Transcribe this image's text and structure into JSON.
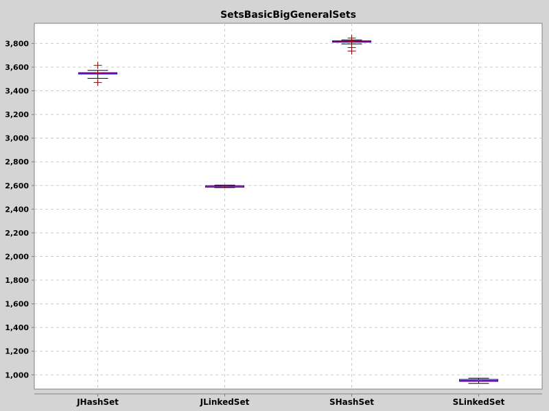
{
  "chart_data": {
    "type": "box",
    "title": "SetsBasicBigGeneralSets",
    "xlabel": "",
    "ylabel": "",
    "categories": [
      "JHashSet",
      "JLinkedSet",
      "SHashSet",
      "SLinkedSet"
    ],
    "ylim": [
      880,
      3970
    ],
    "y_ticks": [
      1000,
      1200,
      1400,
      1600,
      1800,
      2000,
      2200,
      2400,
      2600,
      2800,
      3000,
      3200,
      3400,
      3600,
      3800
    ],
    "y_tick_labels": [
      "1,000",
      "1,200",
      "1,400",
      "1,600",
      "1,800",
      "2,000",
      "2,200",
      "2,400",
      "2,600",
      "2,800",
      "3,000",
      "3,200",
      "3,400",
      "3,600",
      "3,800"
    ],
    "grid": true,
    "boxes": [
      {
        "category": "JHashSet",
        "min": 3505,
        "q1": 3543,
        "median": 3549,
        "q3": 3553,
        "max": 3572,
        "mean": 3552,
        "outliers": [
          3470,
          3615
        ]
      },
      {
        "category": "JLinkedSet",
        "min": 2582,
        "q1": 2592,
        "median": 2595,
        "q3": 2597,
        "max": 2603,
        "mean": 2594,
        "outliers": []
      },
      {
        "category": "SHashSet",
        "min": 3796,
        "q1": 3810,
        "median": 3816,
        "q3": 3822,
        "max": 3830,
        "mean": 3815,
        "outliers": [
          3735,
          3765,
          3845
        ]
      },
      {
        "category": "SLinkedSet",
        "min": 928,
        "q1": 945,
        "median": 951,
        "q3": 962,
        "max": 972,
        "mean": 952,
        "outliers": []
      }
    ],
    "colors": {
      "background": "#d4d4d4",
      "plot_background": "#ffffff",
      "grid": "#c8c8c8",
      "box_stroke": "#0000ff",
      "median": "#ff0000",
      "mean": "#800080",
      "whisker": "#000000",
      "outlier": "#8b0000"
    }
  }
}
